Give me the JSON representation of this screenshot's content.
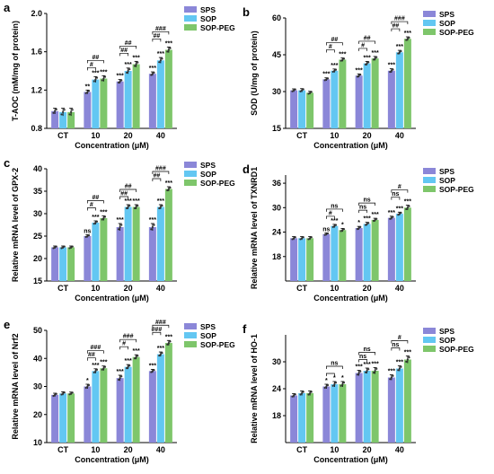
{
  "chart_data": [
    {
      "panel": "a",
      "type": "bar",
      "ylabel": "T-AOC (mM/mg of protein)",
      "xlabel": "Concentration (μM)",
      "categories": [
        "CT",
        "10",
        "20",
        "40"
      ],
      "ylim": [
        0.8,
        2.0
      ],
      "yticks": [
        "0.8",
        "1.2",
        "1.6",
        "2.0"
      ],
      "ytick_values": [
        0.8,
        1.2,
        1.6,
        2.0
      ],
      "legend": [
        "SPS",
        "SOP",
        "SOP-PEG"
      ],
      "legend_position": "top-right",
      "series": [
        {
          "name": "SPS",
          "values": [
            0.98,
            1.18,
            1.29,
            1.37
          ],
          "errors": [
            0.03,
            0.02,
            0.02,
            0.02
          ]
        },
        {
          "name": "SOP",
          "values": [
            0.97,
            1.31,
            1.4,
            1.51
          ],
          "errors": [
            0.04,
            0.03,
            0.03,
            0.03
          ]
        },
        {
          "name": "SOP-PEG",
          "values": [
            0.97,
            1.32,
            1.47,
            1.62
          ],
          "errors": [
            0.04,
            0.03,
            0.03,
            0.03
          ]
        }
      ],
      "bar_labels": [
        [
          "",
          "",
          ""
        ],
        [
          "**",
          "***",
          "***"
        ],
        [
          "***",
          "***",
          "***"
        ],
        [
          "***",
          "***",
          "***"
        ]
      ],
      "bracket_labels": [
        [],
        [
          "##",
          "#"
        ],
        [
          "##",
          "##"
        ],
        [
          "###",
          "##"
        ]
      ]
    },
    {
      "panel": "b",
      "type": "bar",
      "ylabel": "SOD (U/mg of protein)",
      "xlabel": "Concentration (μM)",
      "categories": [
        "CT",
        "10",
        "20",
        "40"
      ],
      "ylim": [
        15,
        60
      ],
      "yticks": [
        "15",
        "30",
        "45",
        "60"
      ],
      "ytick_values": [
        15,
        30,
        45,
        60
      ],
      "legend": [
        "SPS",
        "SOP",
        "SOP-PEG"
      ],
      "legend_position": "top-right",
      "series": [
        {
          "name": "SPS",
          "values": [
            30.5,
            35.0,
            36.5,
            38.5
          ],
          "errors": [
            0.6,
            0.6,
            0.7,
            0.8
          ]
        },
        {
          "name": "SOP",
          "values": [
            30.5,
            38.5,
            41.5,
            46.0
          ],
          "errors": [
            0.7,
            0.7,
            0.8,
            0.8
          ]
        },
        {
          "name": "SOP-PEG",
          "values": [
            29.5,
            43.0,
            43.5,
            51.5
          ],
          "errors": [
            0.6,
            0.7,
            0.8,
            0.8
          ]
        }
      ],
      "bar_labels": [
        [
          "",
          "",
          ""
        ],
        [
          "***",
          "***",
          "***"
        ],
        [
          "***",
          "***",
          "***"
        ],
        [
          "***",
          "***",
          "***"
        ]
      ],
      "bracket_labels": [
        [],
        [
          "##",
          "#"
        ],
        [
          "##",
          "#"
        ],
        [
          "###",
          "##"
        ]
      ]
    },
    {
      "panel": "c",
      "type": "bar",
      "ylabel": "Relative mRNA level of GPX-2",
      "xlabel": "Concentration (μM)",
      "categories": [
        "CT",
        "10",
        "20",
        "40"
      ],
      "ylim": [
        15,
        40
      ],
      "yticks": [
        "15",
        "20",
        "25",
        "30",
        "35",
        "40"
      ],
      "ytick_values": [
        15,
        20,
        25,
        30,
        35,
        40
      ],
      "legend": [
        "SPS",
        "SOP",
        "SOP-PEG"
      ],
      "legend_position": "top-right",
      "series": [
        {
          "name": "SPS",
          "values": [
            22.5,
            25.0,
            27.0,
            27.0
          ],
          "errors": [
            0.3,
            0.3,
            0.8,
            0.8
          ]
        },
        {
          "name": "SOP",
          "values": [
            22.5,
            28.0,
            31.5,
            31.5
          ],
          "errors": [
            0.3,
            0.4,
            0.5,
            0.5
          ]
        },
        {
          "name": "SOP-PEG",
          "values": [
            22.5,
            29.0,
            31.5,
            35.5
          ],
          "errors": [
            0.3,
            0.5,
            0.5,
            0.5
          ]
        }
      ],
      "bar_labels": [
        [
          "",
          "",
          ""
        ],
        [
          "ns",
          "***",
          "***"
        ],
        [
          "***",
          "***",
          "***"
        ],
        [
          "***",
          "***",
          "***"
        ]
      ],
      "bracket_labels": [
        [],
        [
          "##",
          "#"
        ],
        [
          "##",
          "##"
        ],
        [
          "###",
          "##"
        ]
      ]
    },
    {
      "panel": "d",
      "type": "bar",
      "ylabel": "Relative mRNA level of TXNRD1",
      "xlabel": "Concentration (μM)",
      "categories": [
        "CT",
        "10",
        "20",
        "40"
      ],
      "ylim": [
        12,
        38
      ],
      "yticks": [
        "18",
        "24",
        "30",
        "36"
      ],
      "ytick_values": [
        18,
        24,
        30,
        36
      ],
      "legend": [
        "SPS",
        "SOP",
        "SOP-PEG"
      ],
      "legend_position": "top-right",
      "series": [
        {
          "name": "SPS",
          "values": [
            22.5,
            23.5,
            25.0,
            27.5
          ],
          "errors": [
            0.4,
            0.3,
            0.4,
            0.4
          ]
        },
        {
          "name": "SOP",
          "values": [
            22.5,
            25.5,
            26.0,
            28.5
          ],
          "errors": [
            0.4,
            0.4,
            0.4,
            0.4
          ]
        },
        {
          "name": "SOP-PEG",
          "values": [
            22.5,
            24.5,
            27.0,
            30.0
          ],
          "errors": [
            0.4,
            0.4,
            0.4,
            0.6
          ]
        }
      ],
      "bar_labels": [
        [
          "",
          "",
          ""
        ],
        [
          "ns",
          "***",
          "*"
        ],
        [
          "*",
          "***",
          "***"
        ],
        [
          "***",
          "***",
          "***"
        ]
      ],
      "bracket_labels": [
        [],
        [
          "ns",
          "#"
        ],
        [
          "ns",
          "ns"
        ],
        [
          "#",
          "ns"
        ]
      ]
    },
    {
      "panel": "e",
      "type": "bar",
      "ylabel": "Relative mRNA level of Nrf2",
      "xlabel": "Concentration (μM)",
      "categories": [
        "CT",
        "10",
        "20",
        "40"
      ],
      "ylim": [
        10,
        50
      ],
      "yticks": [
        "10",
        "20",
        "30",
        "40",
        "50"
      ],
      "ytick_values": [
        10,
        20,
        30,
        40,
        50
      ],
      "legend": [
        "SPS",
        "SOP",
        "SOP-PEG"
      ],
      "legend_position": "top-right",
      "series": [
        {
          "name": "SPS",
          "values": [
            27.0,
            30.0,
            33.0,
            35.5
          ],
          "errors": [
            0.6,
            0.8,
            1.0,
            0.6
          ]
        },
        {
          "name": "SOP",
          "values": [
            27.5,
            35.5,
            37.0,
            41.5
          ],
          "errors": [
            0.6,
            0.8,
            0.8,
            0.8
          ]
        },
        {
          "name": "SOP-PEG",
          "values": [
            27.5,
            36.5,
            40.5,
            45.5
          ],
          "errors": [
            0.5,
            0.8,
            0.8,
            0.9
          ]
        }
      ],
      "bar_labels": [
        [
          "",
          "",
          ""
        ],
        [
          "*",
          "***",
          "***"
        ],
        [
          "***",
          "***",
          "***"
        ],
        [
          "***",
          "***",
          "***"
        ]
      ],
      "bracket_labels": [
        [],
        [
          "###",
          "##"
        ],
        [
          "###",
          "#"
        ],
        [
          "###",
          "###"
        ]
      ]
    },
    {
      "panel": "f",
      "type": "bar",
      "ylabel": "Relative mRNA level of HO-1",
      "xlabel": "Concentration (μM)",
      "categories": [
        "CT",
        "10",
        "20",
        "40"
      ],
      "ylim": [
        12,
        36
      ],
      "yticks": [
        "18",
        "24",
        "30"
      ],
      "ytick_values": [
        18,
        24,
        30
      ],
      "legend": [
        "SPS",
        "SOP",
        "SOP-PEG"
      ],
      "legend_position": "top-right",
      "series": [
        {
          "name": "SPS",
          "values": [
            22.5,
            24.5,
            27.5,
            26.5
          ],
          "errors": [
            0.4,
            0.5,
            0.6,
            0.6
          ]
        },
        {
          "name": "SOP",
          "values": [
            23.0,
            25.0,
            28.0,
            28.5
          ],
          "errors": [
            0.5,
            0.6,
            0.6,
            0.6
          ]
        },
        {
          "name": "SOP-PEG",
          "values": [
            23.0,
            25.0,
            28.0,
            30.5
          ],
          "errors": [
            0.5,
            0.6,
            0.7,
            0.8
          ]
        }
      ],
      "bar_labels": [
        [
          "",
          "",
          ""
        ],
        [
          "*",
          "*",
          "*"
        ],
        [
          "***",
          "***",
          "***"
        ],
        [
          "***",
          "***",
          "***"
        ]
      ],
      "bracket_labels": [
        [],
        [
          "ns",
          ""
        ],
        [
          "ns",
          "ns"
        ],
        [
          "#",
          "ns"
        ]
      ]
    }
  ],
  "colors": {
    "SPS": "#8b87d8",
    "SOP": "#63c7f2",
    "SOP-PEG": "#7ec66b",
    "axis": "#000000"
  }
}
